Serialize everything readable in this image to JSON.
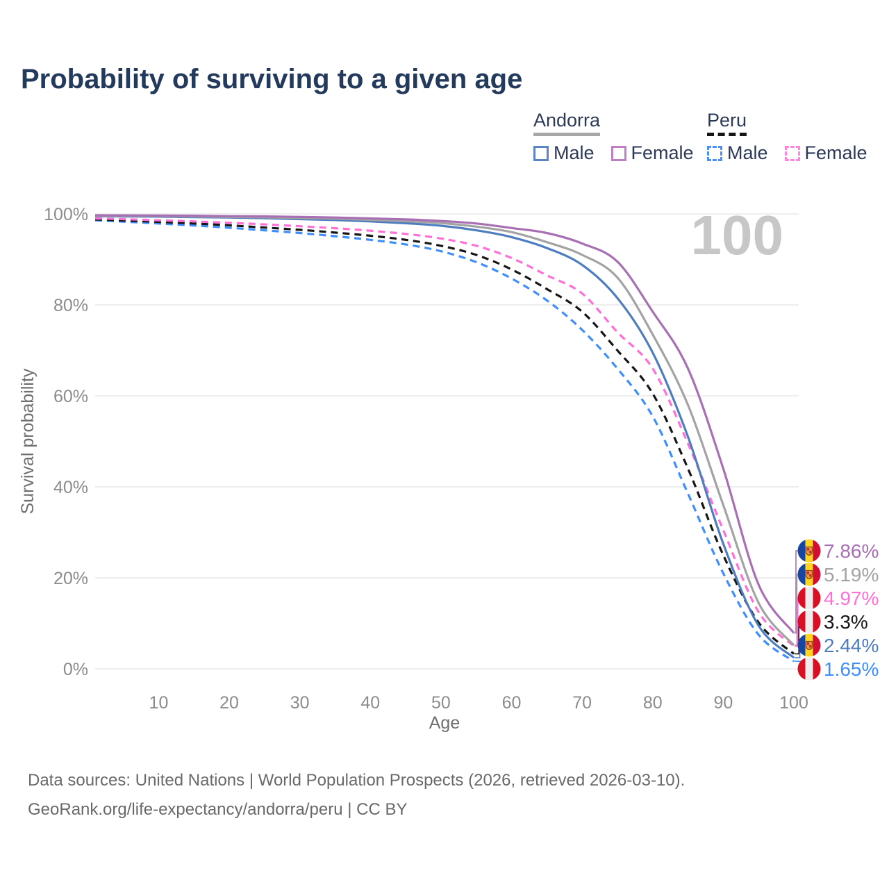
{
  "title": "Probability of surviving to a given age",
  "legend": {
    "groups": [
      {
        "id": "andorra",
        "name": "Andorra",
        "line_style": "solid",
        "underline_color": "#a8a8a8",
        "items": [
          {
            "id": "male",
            "label": "Male",
            "color": "#5b84c4"
          },
          {
            "id": "female",
            "label": "Female",
            "color": "#c07fc5"
          }
        ]
      },
      {
        "id": "peru",
        "name": "Peru",
        "line_style": "dashed",
        "underline_color": "#161616",
        "items": [
          {
            "id": "male",
            "label": "Male",
            "color": "#4a90fb"
          },
          {
            "id": "female",
            "label": "Female",
            "color": "#ff85e0"
          }
        ]
      }
    ]
  },
  "chart_data": {
    "type": "line",
    "title": "Probability of surviving to a given age",
    "xlabel": "Age",
    "ylabel": "Survival probability",
    "watermark": "100",
    "xlim": [
      1,
      100
    ],
    "ylim": [
      0,
      100
    ],
    "grid": "horizontal-only",
    "legend_position": "top-right",
    "x_ticks": [
      10,
      20,
      30,
      40,
      50,
      60,
      70,
      80,
      90,
      100
    ],
    "y_ticks": [
      {
        "value": 0,
        "label": "0%"
      },
      {
        "value": 20,
        "label": "20%"
      },
      {
        "value": 40,
        "label": "40%"
      },
      {
        "value": 60,
        "label": "60%"
      },
      {
        "value": 80,
        "label": "80%"
      },
      {
        "value": 100,
        "label": "100%"
      }
    ],
    "x": [
      1,
      5,
      10,
      15,
      20,
      25,
      30,
      35,
      40,
      45,
      50,
      55,
      60,
      65,
      70,
      75,
      80,
      85,
      90,
      95,
      100
    ],
    "series": [
      {
        "id": "peru-male",
        "name": "Peru Male",
        "color": "#3e8efd",
        "dash": true,
        "flag": "peru",
        "end_label": "1.65%",
        "values": [
          98.6,
          98.3,
          97.9,
          97.45,
          96.95,
          96.4,
          95.8,
          95.1,
          94.3,
          93.3,
          91.8,
          89.4,
          85.8,
          81.0,
          74.5,
          66.0,
          55.5,
          38.5,
          21.0,
          7.5,
          1.65
        ]
      },
      {
        "id": "peru-total",
        "name": "Peru",
        "color": "#161616",
        "dash": true,
        "flag": "peru",
        "end_label": "3.3%",
        "values": [
          98.8,
          98.55,
          98.25,
          97.9,
          97.5,
          97.0,
          96.5,
          95.9,
          95.2,
          94.3,
          93.0,
          91.0,
          87.8,
          83.5,
          78.5,
          70.0,
          60.5,
          44.0,
          25.0,
          10.2,
          3.3
        ]
      },
      {
        "id": "peru-female",
        "name": "Peru Female",
        "color": "#ff70d6",
        "dash": true,
        "flag": "peru",
        "end_label": "4.97%",
        "values": [
          99.0,
          98.85,
          98.6,
          98.35,
          98.05,
          97.7,
          97.3,
          96.85,
          96.3,
          95.6,
          94.6,
          93.0,
          90.3,
          86.5,
          82.5,
          74.0,
          66.0,
          49.5,
          30.5,
          12.5,
          4.97
        ]
      },
      {
        "id": "andorra-male",
        "name": "Andorra Male",
        "color": "#4d7dbf",
        "dash": false,
        "flag": "andorra",
        "end_label": "2.44%",
        "values": [
          99.5,
          99.45,
          99.4,
          99.3,
          99.2,
          99.05,
          98.85,
          98.65,
          98.35,
          97.95,
          97.4,
          96.4,
          94.9,
          92.5,
          88.8,
          81.5,
          69.5,
          51.0,
          27.5,
          9.5,
          2.44
        ]
      },
      {
        "id": "andorra-total",
        "name": "Andorra",
        "color": "#a3a3a3",
        "dash": false,
        "flag": "andorra",
        "end_label": "5.19%",
        "values": [
          99.6,
          99.58,
          99.55,
          99.45,
          99.35,
          99.25,
          99.1,
          98.95,
          98.7,
          98.4,
          98.0,
          97.2,
          96.0,
          93.8,
          91.0,
          86.0,
          73.5,
          58.0,
          36.0,
          14.5,
          5.19
        ]
      },
      {
        "id": "andorra-female",
        "name": "Andorra Female",
        "color": "#a86fb5",
        "dash": false,
        "flag": "andorra",
        "end_label": "7.86%",
        "values": [
          99.7,
          99.68,
          99.65,
          99.6,
          99.5,
          99.45,
          99.35,
          99.2,
          99.0,
          98.8,
          98.45,
          97.9,
          96.9,
          95.8,
          93.5,
          89.5,
          78.5,
          66.0,
          44.0,
          18.5,
          7.86
        ]
      }
    ],
    "flag_colors": {
      "andorra": {
        "left": "#1646a3",
        "middle": "#ffd520",
        "right": "#d30e35",
        "crest_fill": "#e89b3c",
        "crest_stroke": "#8a4a16",
        "crest_detail": "#cc2233"
      },
      "peru": {
        "left": "#d91023",
        "middle": "#ededed",
        "right": "#d91023"
      }
    }
  },
  "footer": {
    "line1": "Data sources: United Nations | World Population Prospects (2026, retrieved 2026-03-10).",
    "line2": "GeoRank.org/life-expectancy/andorra/peru | CC BY"
  }
}
